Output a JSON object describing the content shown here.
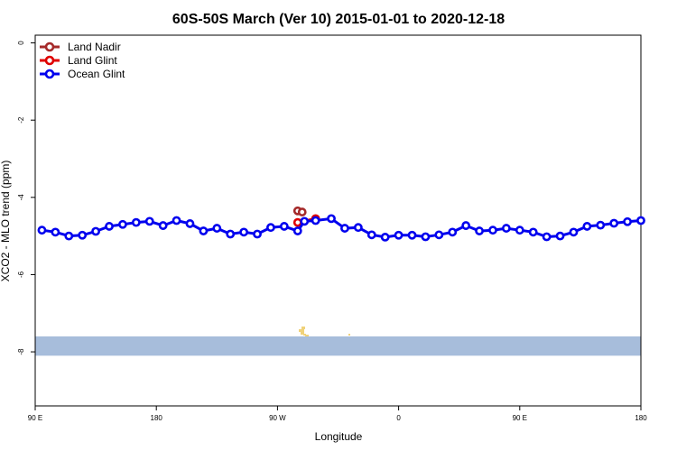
{
  "chart_data": {
    "type": "line",
    "title": "60S-50S March (Ver 10)   2015-01-01 to 2020-12-18",
    "xlabel": "Longitude",
    "ylabel": "XCO2 - MLO trend (ppm)",
    "xlim": [
      -90,
      180
    ],
    "ylim": [
      -9.4,
      0.2
    ],
    "xticks": [
      {
        "value": -90,
        "label": "90 E"
      },
      {
        "value": -36,
        "label": "180"
      },
      {
        "value": 18,
        "label": "90 W"
      },
      {
        "value": 72,
        "label": "0"
      },
      {
        "value": 126,
        "label": "90 E"
      },
      {
        "value": 180,
        "label": "180"
      }
    ],
    "yticks": [
      0,
      -2,
      -4,
      -6,
      -8
    ],
    "grid": false,
    "legend_position": "top-left",
    "band": {
      "y_from": -7.6,
      "y_to": -8.1,
      "color": "#a7bddb"
    },
    "land_color": "#f0d27a",
    "series": [
      {
        "name": "Land Nadir",
        "color": "#a52a2a",
        "x": [
          27,
          29
        ],
        "y": [
          -4.35,
          -4.38
        ]
      },
      {
        "name": "Land Glint",
        "color": "#e00000",
        "x": [
          27,
          35
        ],
        "y": [
          -4.65,
          -4.55
        ]
      },
      {
        "name": "Ocean Glint",
        "color": "#0000ee",
        "x": [
          -87,
          -81,
          -75,
          -69,
          -63,
          -57,
          -51,
          -45,
          -39,
          -33,
          -27,
          -21,
          -15,
          -9,
          -3,
          3,
          9,
          15,
          21,
          27,
          30,
          35,
          42,
          48,
          54,
          60,
          66,
          72,
          78,
          84,
          90,
          96,
          102,
          108,
          114,
          120,
          126,
          132,
          138,
          144,
          150,
          156,
          162,
          168,
          174,
          180
        ],
        "y": [
          -4.85,
          -4.9,
          -5.0,
          -4.98,
          -4.88,
          -4.75,
          -4.7,
          -4.65,
          -4.62,
          -4.73,
          -4.6,
          -4.68,
          -4.87,
          -4.8,
          -4.95,
          -4.9,
          -4.95,
          -4.78,
          -4.75,
          -4.87,
          -4.62,
          -4.6,
          -4.55,
          -4.8,
          -4.78,
          -4.97,
          -5.03,
          -4.98,
          -4.98,
          -5.02,
          -4.97,
          -4.9,
          -4.73,
          -4.87,
          -4.85,
          -4.8,
          -4.85,
          -4.9,
          -5.02,
          -5.0,
          -4.9,
          -4.75,
          -4.72,
          -4.67,
          -4.63,
          -4.6
        ]
      }
    ]
  }
}
